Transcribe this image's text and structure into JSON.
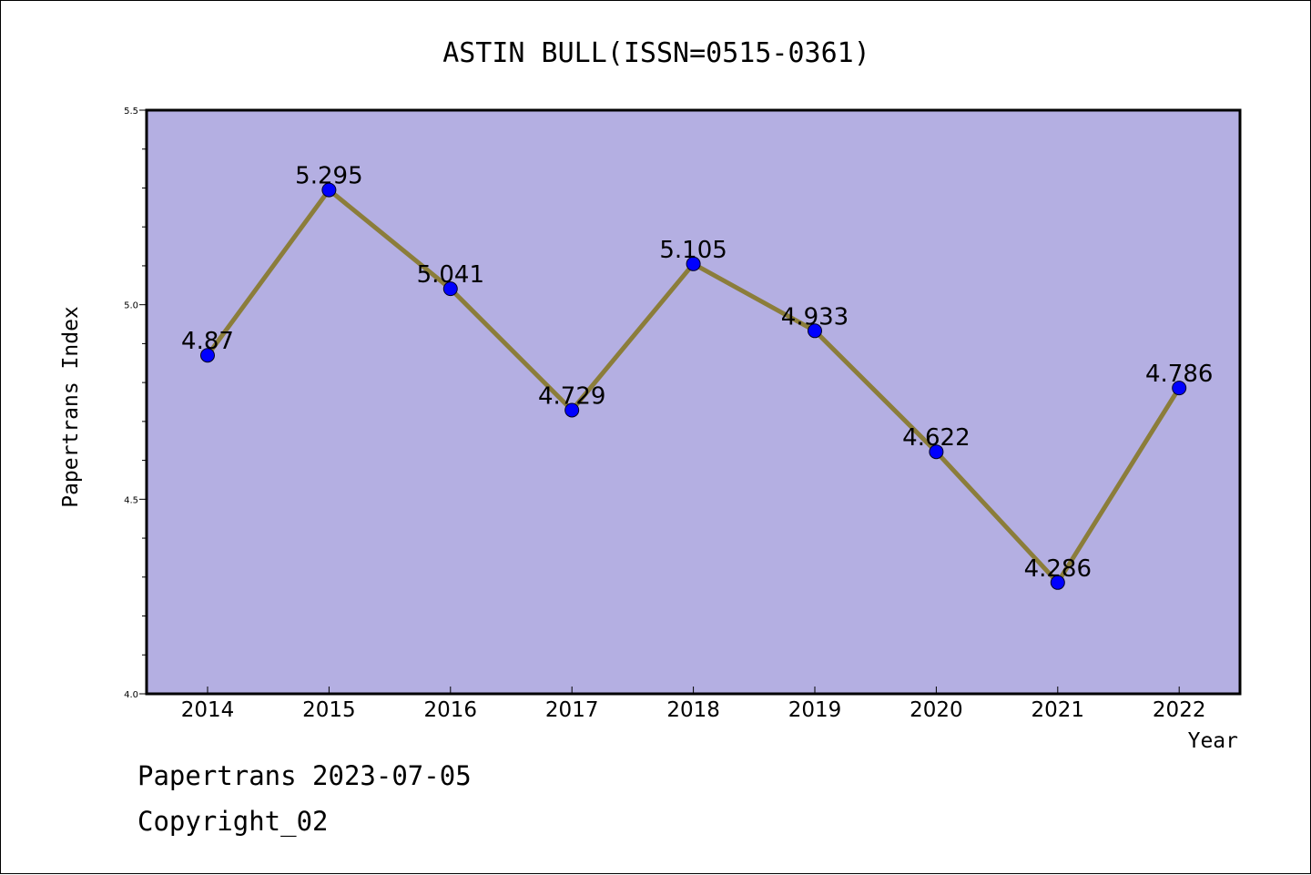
{
  "chart_data": {
    "type": "line",
    "title": "ASTIN BULL(ISSN=0515-0361)",
    "xlabel": "Year",
    "ylabel": "Papertrans Index",
    "categories": [
      "2014",
      "2015",
      "2016",
      "2017",
      "2018",
      "2019",
      "2020",
      "2021",
      "2022"
    ],
    "series": [
      {
        "values": [
          4.87,
          5.295,
          5.041,
          4.729,
          5.105,
          4.933,
          4.622,
          4.286,
          4.786
        ]
      }
    ],
    "data_labels": [
      "4.87",
      "5.295",
      "5.041",
      "4.729",
      "5.105",
      "4.933",
      "4.622",
      "4.286",
      "4.786"
    ],
    "ylim": [
      4.0,
      5.5
    ],
    "yticks": [
      "4.0",
      "4.5",
      "5.0",
      "5.5"
    ],
    "grid": false,
    "colors": {
      "plot_background": "#b4afe2",
      "line": "#8b7d3a",
      "marker": "#0000ff"
    }
  },
  "footer": {
    "line1": "Papertrans 2023-07-05",
    "line2": "Copyright_02"
  }
}
